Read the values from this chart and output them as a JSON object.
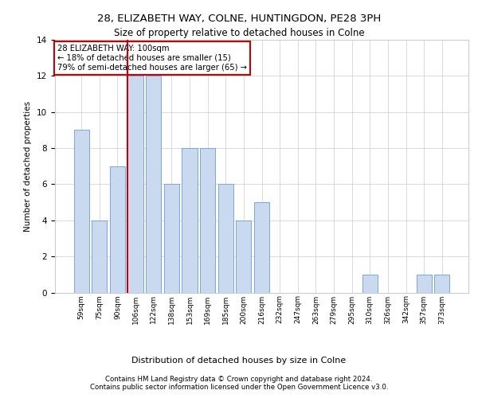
{
  "title1": "28, ELIZABETH WAY, COLNE, HUNTINGDON, PE28 3PH",
  "title2": "Size of property relative to detached houses in Colne",
  "xlabel": "Distribution of detached houses by size in Colne",
  "ylabel": "Number of detached properties",
  "categories": [
    "59sqm",
    "75sqm",
    "90sqm",
    "106sqm",
    "122sqm",
    "138sqm",
    "153sqm",
    "169sqm",
    "185sqm",
    "200sqm",
    "216sqm",
    "232sqm",
    "247sqm",
    "263sqm",
    "279sqm",
    "295sqm",
    "310sqm",
    "326sqm",
    "342sqm",
    "357sqm",
    "373sqm"
  ],
  "values": [
    9,
    4,
    7,
    12,
    12,
    6,
    8,
    8,
    6,
    4,
    5,
    0,
    0,
    0,
    0,
    0,
    1,
    0,
    0,
    1,
    1
  ],
  "bar_color": "#c9d9f0",
  "bar_edge_color": "#7aa6d6",
  "bar_width": 0.85,
  "red_line_index": 3,
  "annotation_title": "28 ELIZABETH WAY: 100sqm",
  "annotation_line1": "← 18% of detached houses are smaller (15)",
  "annotation_line2": "79% of semi-detached houses are larger (65) →",
  "annotation_box_color": "#ffffff",
  "annotation_box_edge_color": "#cc0000",
  "vline_color": "#cc0000",
  "ylim": [
    0,
    14
  ],
  "yticks": [
    0,
    2,
    4,
    6,
    8,
    10,
    12,
    14
  ],
  "footer1": "Contains HM Land Registry data © Crown copyright and database right 2024.",
  "footer2": "Contains public sector information licensed under the Open Government Licence v3.0.",
  "bg_color": "#ffffff",
  "grid_color": "#cccccc"
}
